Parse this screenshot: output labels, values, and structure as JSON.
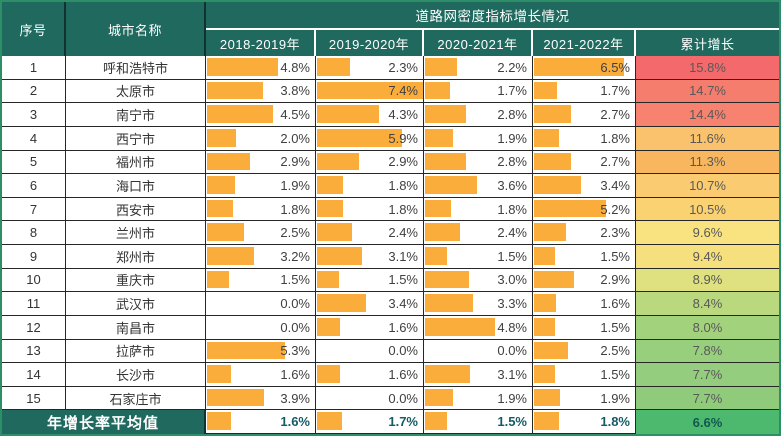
{
  "header": {
    "col_index": "序号",
    "col_city": "城市名称",
    "group_title": "道路网密度指标增长情况",
    "year_cols": [
      "2018-2019年",
      "2019-2020年",
      "2020-2021年",
      "2021-2022年"
    ],
    "col_cumulative": "累计增长"
  },
  "colors": {
    "header_bg": "#1F695E",
    "bar": "#FBAD3B",
    "body_border": "#262626",
    "avg_value_text": "#155B66",
    "outer_border": "#2E8E67"
  },
  "bar_scale_max": 7.4,
  "rows": [
    {
      "index": "1",
      "city": "呼和浩特市",
      "values": [
        "4.8%",
        "2.3%",
        "2.2%",
        "6.5%"
      ],
      "cumulative": "15.8%",
      "cumulative_color": "#F4696B"
    },
    {
      "index": "2",
      "city": "太原市",
      "values": [
        "3.8%",
        "7.4%",
        "1.7%",
        "1.7%"
      ],
      "cumulative": "14.7%",
      "cumulative_color": "#F57D6E"
    },
    {
      "index": "3",
      "city": "南宁市",
      "values": [
        "4.5%",
        "4.3%",
        "2.8%",
        "2.7%"
      ],
      "cumulative": "14.4%",
      "cumulative_color": "#F6826F"
    },
    {
      "index": "4",
      "city": "西宁市",
      "values": [
        "2.0%",
        "5.9%",
        "1.9%",
        "1.8%"
      ],
      "cumulative": "11.6%",
      "cumulative_color": "#FAC26D"
    },
    {
      "index": "5",
      "city": "福州市",
      "values": [
        "2.9%",
        "2.9%",
        "2.8%",
        "2.7%"
      ],
      "cumulative": "11.3%",
      "cumulative_color": "#F8B75F"
    },
    {
      "index": "6",
      "city": "海口市",
      "values": [
        "1.9%",
        "1.8%",
        "3.6%",
        "3.4%"
      ],
      "cumulative": "10.7%",
      "cumulative_color": "#FACB70"
    },
    {
      "index": "7",
      "city": "西安市",
      "values": [
        "1.8%",
        "1.8%",
        "1.8%",
        "5.2%"
      ],
      "cumulative": "10.5%",
      "cumulative_color": "#FBD271"
    },
    {
      "index": "8",
      "city": "兰州市",
      "values": [
        "2.5%",
        "2.4%",
        "2.4%",
        "2.3%"
      ],
      "cumulative": "9.6%",
      "cumulative_color": "#F8E380"
    },
    {
      "index": "9",
      "city": "郑州市",
      "values": [
        "3.2%",
        "3.1%",
        "1.5%",
        "1.5%"
      ],
      "cumulative": "9.4%",
      "cumulative_color": "#F6E07E"
    },
    {
      "index": "10",
      "city": "重庆市",
      "values": [
        "1.5%",
        "1.5%",
        "3.0%",
        "2.9%"
      ],
      "cumulative": "8.9%",
      "cumulative_color": "#DFE07F"
    },
    {
      "index": "11",
      "city": "武汉市",
      "values": [
        "0.0%",
        "3.4%",
        "3.3%",
        "1.6%"
      ],
      "cumulative": "8.4%",
      "cumulative_color": "#BAD87E"
    },
    {
      "index": "12",
      "city": "南昌市",
      "values": [
        "0.0%",
        "1.6%",
        "4.8%",
        "1.5%"
      ],
      "cumulative": "8.0%",
      "cumulative_color": "#A3D27D"
    },
    {
      "index": "13",
      "city": "拉萨市",
      "values": [
        "5.3%",
        "0.0%",
        "0.0%",
        "2.5%"
      ],
      "cumulative": "7.8%",
      "cumulative_color": "#98CF7D"
    },
    {
      "index": "14",
      "city": "长沙市",
      "values": [
        "1.6%",
        "1.6%",
        "3.1%",
        "1.5%"
      ],
      "cumulative": "7.7%",
      "cumulative_color": "#94CD7D"
    },
    {
      "index": "15",
      "city": "石家庄市",
      "values": [
        "3.9%",
        "0.0%",
        "1.9%",
        "1.9%"
      ],
      "cumulative": "7.7%",
      "cumulative_color": "#90CB7C"
    }
  ],
  "average_row": {
    "label": "年增长率平均值",
    "values": [
      "1.6%",
      "1.7%",
      "1.5%",
      "1.8%"
    ],
    "cumulative": "6.6%",
    "cumulative_color": "#4CB96E"
  },
  "chart_data": {
    "type": "table",
    "title": "道路网密度指标增长情况",
    "units": "%",
    "columns": [
      "序号",
      "城市名称",
      "2018-2019年",
      "2019-2020年",
      "2020-2021年",
      "2021-2022年",
      "累计增长"
    ],
    "rows": [
      [
        1,
        "呼和浩特市",
        4.8,
        2.3,
        2.2,
        6.5,
        15.8
      ],
      [
        2,
        "太原市",
        3.8,
        7.4,
        1.7,
        1.7,
        14.7
      ],
      [
        3,
        "南宁市",
        4.5,
        4.3,
        2.8,
        2.7,
        14.4
      ],
      [
        4,
        "西宁市",
        2.0,
        5.9,
        1.9,
        1.8,
        11.6
      ],
      [
        5,
        "福州市",
        2.9,
        2.9,
        2.8,
        2.7,
        11.3
      ],
      [
        6,
        "海口市",
        1.9,
        1.8,
        3.6,
        3.4,
        10.7
      ],
      [
        7,
        "西安市",
        1.8,
        1.8,
        1.8,
        5.2,
        10.5
      ],
      [
        8,
        "兰州市",
        2.5,
        2.4,
        2.4,
        2.3,
        9.6
      ],
      [
        9,
        "郑州市",
        3.2,
        3.1,
        1.5,
        1.5,
        9.4
      ],
      [
        10,
        "重庆市",
        1.5,
        1.5,
        3.0,
        2.9,
        8.9
      ],
      [
        11,
        "武汉市",
        0.0,
        3.4,
        3.3,
        1.6,
        8.4
      ],
      [
        12,
        "南昌市",
        0.0,
        1.6,
        4.8,
        1.5,
        8.0
      ],
      [
        13,
        "拉萨市",
        5.3,
        0.0,
        0.0,
        2.5,
        7.8
      ],
      [
        14,
        "长沙市",
        1.6,
        1.6,
        3.1,
        1.5,
        7.7
      ],
      [
        15,
        "石家庄市",
        3.9,
        0.0,
        1.9,
        1.9,
        7.7
      ]
    ],
    "average": [
      "年增长率平均值",
      1.6,
      1.7,
      1.5,
      1.8,
      6.6
    ],
    "bar_style": "in-cell data bars, orange, scaled to max 7.4%",
    "cumulative_color_scale": "red (high) → yellow → green (low)"
  }
}
